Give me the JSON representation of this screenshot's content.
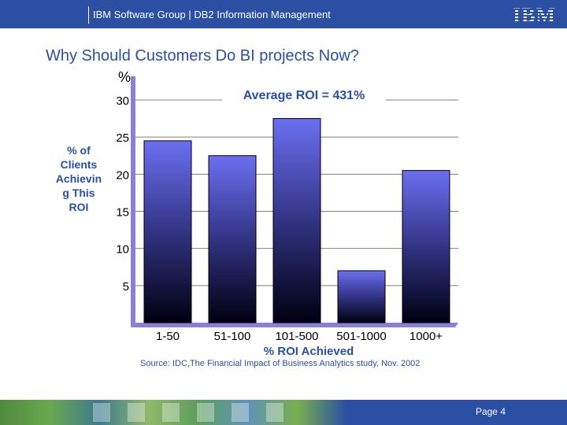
{
  "header": {
    "text": "IBM Software Group  |  DB2 Information Management",
    "logo": "IBM"
  },
  "slide_title": "Why Should Customers Do BI projects Now?",
  "footer": {
    "page_label": "Page 4"
  },
  "colors": {
    "brand": "#2a4fa3",
    "bar_top": "#6b6ff0",
    "bar_bottom": "#000010"
  },
  "chart_data": {
    "type": "bar",
    "categories": [
      "1-50",
      "51-100",
      "101-500",
      "501-1000",
      "1000+"
    ],
    "values": [
      24.5,
      22.5,
      27.5,
      7.0,
      20.5
    ],
    "ylabel": "% of Clients Achieving This ROI",
    "ylabel_lines": [
      "% of",
      "Clients",
      "Achievin",
      "g This",
      "ROI"
    ],
    "yunit_label": "%",
    "xlabel": "% ROI Achieved",
    "yticks": [
      5,
      10,
      15,
      20,
      25,
      30
    ],
    "ylim": [
      0,
      30
    ],
    "annotation": "Average ROI = 431%",
    "source": "Source: IDC,The Financial Impact of Business Analytics study,  Nov. 2002",
    "grid": true
  }
}
